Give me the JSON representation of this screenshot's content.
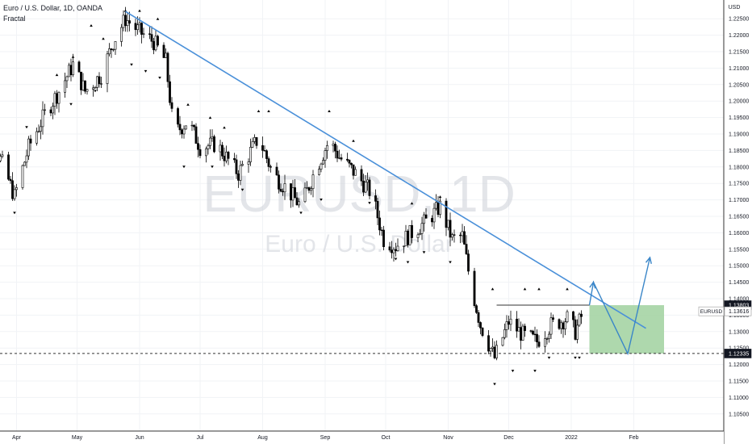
{
  "chart_data": {
    "type": "candlestick",
    "title": "Euro / U.S. Dollar, 1D, OANDA",
    "indicator": "Fractal",
    "watermark_symbol": "EURUSD, 1D",
    "watermark_name": "Euro / U.S. Dollar",
    "currency": "USD",
    "symbol_tag": "EURUSD",
    "ylim": [
      1.1025,
      1.2275
    ],
    "y_ticks": [
      "1.22500",
      "1.22000",
      "1.21500",
      "1.21000",
      "1.20500",
      "1.20000",
      "1.19500",
      "1.19000",
      "1.18500",
      "1.18000",
      "1.17500",
      "1.17000",
      "1.16500",
      "1.16000",
      "1.15500",
      "1.15000",
      "1.14500",
      "1.14000",
      "1.13500",
      "1.13000",
      "1.12500",
      "1.12000",
      "1.11500",
      "1.11000",
      "1.10500"
    ],
    "x_ticks": [
      {
        "label": "Apr",
        "date": "2021-04-01"
      },
      {
        "label": "May",
        "date": "2021-05-01"
      },
      {
        "label": "Jun",
        "date": "2021-06-01"
      },
      {
        "label": "Jul",
        "date": "2021-07-01"
      },
      {
        "label": "Aug",
        "date": "2021-08-01"
      },
      {
        "label": "Sep",
        "date": "2021-09-01"
      },
      {
        "label": "Oct",
        "date": "2021-10-01"
      },
      {
        "label": "Nov",
        "date": "2021-11-01"
      },
      {
        "label": "Dec",
        "date": "2021-12-01"
      },
      {
        "label": "2022",
        "date": "2022-01-01"
      },
      {
        "label": "Feb",
        "date": "2022-02-01"
      }
    ],
    "price_labels": [
      {
        "label": "1.13803",
        "value": 1.13803,
        "style": "dark"
      },
      {
        "label": "1.13616",
        "value": 1.13616,
        "style": "light"
      },
      {
        "label": "1.12335",
        "value": 1.12335,
        "style": "dark"
      }
    ],
    "price_path": [
      {
        "date": "2021-03-10",
        "price": 1.195
      },
      {
        "date": "2021-03-18",
        "price": 1.19
      },
      {
        "date": "2021-03-25",
        "price": 1.181
      },
      {
        "date": "2021-03-31",
        "price": 1.171
      },
      {
        "date": "2021-04-07",
        "price": 1.186
      },
      {
        "date": "2021-04-15",
        "price": 1.196
      },
      {
        "date": "2021-04-22",
        "price": 1.203
      },
      {
        "date": "2021-04-29",
        "price": 1.211
      },
      {
        "date": "2021-05-05",
        "price": 1.203
      },
      {
        "date": "2021-05-13",
        "price": 1.208
      },
      {
        "date": "2021-05-19",
        "price": 1.218
      },
      {
        "date": "2021-05-25",
        "price": 1.225
      },
      {
        "date": "2021-06-01",
        "price": 1.221
      },
      {
        "date": "2021-06-08",
        "price": 1.218
      },
      {
        "date": "2021-06-14",
        "price": 1.212
      },
      {
        "date": "2021-06-18",
        "price": 1.19
      },
      {
        "date": "2021-06-25",
        "price": 1.194
      },
      {
        "date": "2021-07-01",
        "price": 1.186
      },
      {
        "date": "2021-07-09",
        "price": 1.187
      },
      {
        "date": "2021-07-20",
        "price": 1.178
      },
      {
        "date": "2021-07-30",
        "price": 1.189
      },
      {
        "date": "2021-08-06",
        "price": 1.178
      },
      {
        "date": "2021-08-12",
        "price": 1.174
      },
      {
        "date": "2021-08-20",
        "price": 1.168
      },
      {
        "date": "2021-08-27",
        "price": 1.179
      },
      {
        "date": "2021-09-03",
        "price": 1.188
      },
      {
        "date": "2021-09-08",
        "price": 1.183
      },
      {
        "date": "2021-09-16",
        "price": 1.178
      },
      {
        "date": "2021-09-24",
        "price": 1.172
      },
      {
        "date": "2021-09-30",
        "price": 1.158
      },
      {
        "date": "2021-10-06",
        "price": 1.156
      },
      {
        "date": "2021-10-14",
        "price": 1.16
      },
      {
        "date": "2021-10-22",
        "price": 1.164
      },
      {
        "date": "2021-10-28",
        "price": 1.168
      },
      {
        "date": "2021-11-03",
        "price": 1.158
      },
      {
        "date": "2021-11-08",
        "price": 1.159
      },
      {
        "date": "2021-11-12",
        "price": 1.145
      },
      {
        "date": "2021-11-17",
        "price": 1.132
      },
      {
        "date": "2021-11-24",
        "price": 1.122
      },
      {
        "date": "2021-12-01",
        "price": 1.133
      },
      {
        "date": "2021-12-08",
        "price": 1.129
      },
      {
        "date": "2021-12-15",
        "price": 1.127
      },
      {
        "date": "2021-12-22",
        "price": 1.132
      },
      {
        "date": "2021-12-30",
        "price": 1.134
      },
      {
        "date": "2022-01-03",
        "price": 1.13
      },
      {
        "date": "2022-01-07",
        "price": 1.136
      }
    ],
    "upper_fractals": [
      {
        "date": "2021-03-11",
        "price": 1.202
      },
      {
        "date": "2021-03-16",
        "price": 1.202
      },
      {
        "date": "2021-04-21",
        "price": 1.207
      },
      {
        "date": "2021-04-29",
        "price": 1.2125
      },
      {
        "date": "2021-05-08",
        "price": 1.222
      },
      {
        "date": "2021-05-14",
        "price": 1.218
      },
      {
        "date": "2021-05-25",
        "price": 1.2265
      },
      {
        "date": "2021-06-01",
        "price": 1.2265
      },
      {
        "date": "2021-06-10",
        "price": 1.224
      },
      {
        "date": "2021-06-25",
        "price": 1.198
      },
      {
        "date": "2021-07-06",
        "price": 1.194
      },
      {
        "date": "2021-07-13",
        "price": 1.191
      },
      {
        "date": "2021-07-30",
        "price": 1.196
      },
      {
        "date": "2021-08-04",
        "price": 1.196
      },
      {
        "date": "2021-09-03",
        "price": 1.196
      },
      {
        "date": "2021-09-15",
        "price": 1.187
      },
      {
        "date": "2021-10-14",
        "price": 1.168
      },
      {
        "date": "2021-10-28",
        "price": 1.17
      },
      {
        "date": "2021-11-23",
        "price": 1.142
      },
      {
        "date": "2021-12-09",
        "price": 1.142
      },
      {
        "date": "2021-12-16",
        "price": 1.142
      },
      {
        "date": "2021-12-30",
        "price": 1.142
      }
    ],
    "lower_fractals": [
      {
        "date": "2021-03-14",
        "price": 1.185
      },
      {
        "date": "2021-03-31",
        "price": 1.167
      },
      {
        "date": "2021-04-06",
        "price": 1.193
      },
      {
        "date": "2021-04-28",
        "price": 1.2
      },
      {
        "date": "2021-05-10",
        "price": 1.204
      },
      {
        "date": "2021-05-28",
        "price": 1.212
      },
      {
        "date": "2021-06-04",
        "price": 1.21
      },
      {
        "date": "2021-06-11",
        "price": 1.208
      },
      {
        "date": "2021-06-23",
        "price": 1.181
      },
      {
        "date": "2021-07-07",
        "price": 1.181
      },
      {
        "date": "2021-07-22",
        "price": 1.174
      },
      {
        "date": "2021-08-20",
        "price": 1.167
      },
      {
        "date": "2021-08-30",
        "price": 1.171
      },
      {
        "date": "2021-09-23",
        "price": 1.17
      },
      {
        "date": "2021-10-06",
        "price": 1.153
      },
      {
        "date": "2021-10-12",
        "price": 1.152
      },
      {
        "date": "2021-10-20",
        "price": 1.155
      },
      {
        "date": "2021-11-02",
        "price": 1.152
      },
      {
        "date": "2021-11-24",
        "price": 1.115
      },
      {
        "date": "2021-12-03",
        "price": 1.119
      },
      {
        "date": "2021-12-14",
        "price": 1.119
      },
      {
        "date": "2021-12-21",
        "price": 1.123
      },
      {
        "date": "2022-01-03",
        "price": 1.123
      },
      {
        "date": "2022-01-05",
        "price": 1.123
      }
    ],
    "trendline": [
      {
        "date": "2021-05-25",
        "price": 1.2272
      },
      {
        "date": "2022-02-07",
        "price": 1.131
      }
    ],
    "range_top": {
      "from": "2021-11-25",
      "to": "2022-01-10",
      "price": 1.13803
    },
    "support_line": {
      "price": 1.12335
    },
    "target_zone": {
      "from": "2022-01-10",
      "to": "2022-02-16",
      "top": 1.13803,
      "bottom": 1.12335
    },
    "projection_path": [
      {
        "date": "2022-01-10",
        "price": 1.138
      },
      {
        "date": "2022-01-12",
        "price": 1.145
      },
      {
        "date": "2022-01-29",
        "price": 1.1233
      },
      {
        "date": "2022-02-09",
        "price": 1.1525
      }
    ],
    "colors": {
      "trendline": "#4a90d9",
      "projection": "#3a86c8",
      "zone": "#a5d4a4",
      "candle": "#000000",
      "grid": "#f1f3f6",
      "axis_text": "#131722",
      "watermark": "#d1d4dc"
    }
  }
}
